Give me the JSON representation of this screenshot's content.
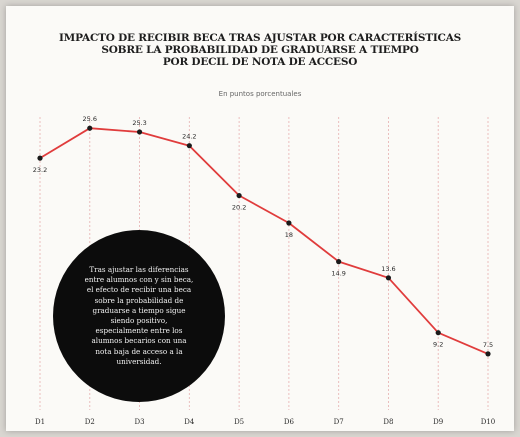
{
  "title_lines": [
    "IMPACTO DE RECIBIR BECA TRAS AJUSTAR POR CARACTERÍSTICAS",
    "SOBRE LA PROBABILIDAD DE GRADUARSE A TIEMPO",
    "POR DECIL DE NOTA DE ACCESO"
  ],
  "subtitle": "En puntos porcentuales",
  "annotation": "Tras ajustar las diferencias entre alumnos con y sin beca, el efecto de recibir una beca sobre la probabilidad de graduarse a tiempo sigue siendo positivo, especialmente entre los alumnos becarios con una nota baja de acceso a la universidad.",
  "colors": {
    "line": "#e03c3c",
    "marker": "#1a1a1a",
    "grid": "#e9b7b7"
  },
  "chart_data": {
    "type": "line",
    "title": "IMPACTO DE RECIBIR BECA TRAS AJUSTAR POR CARACTERÍSTICAS SOBRE LA PROBABILIDAD DE GRADUARSE A TIEMPO POR DECIL DE NOTA DE ACCESO",
    "subtitle": "En puntos porcentuales",
    "categories": [
      "D1",
      "D2",
      "D3",
      "D4",
      "D5",
      "D6",
      "D7",
      "D8",
      "D9",
      "D10"
    ],
    "values": [
      23.2,
      25.6,
      25.3,
      24.2,
      20.2,
      18,
      14.9,
      13.6,
      9.2,
      7.5
    ],
    "value_labels": [
      "23.2",
      "25.6",
      "25.3",
      "24.2",
      "20.2",
      "18",
      "14.9",
      "13.6",
      "9.2",
      "7.5"
    ],
    "ylim": [
      3,
      26.5
    ],
    "grid": true,
    "legend": "none"
  }
}
